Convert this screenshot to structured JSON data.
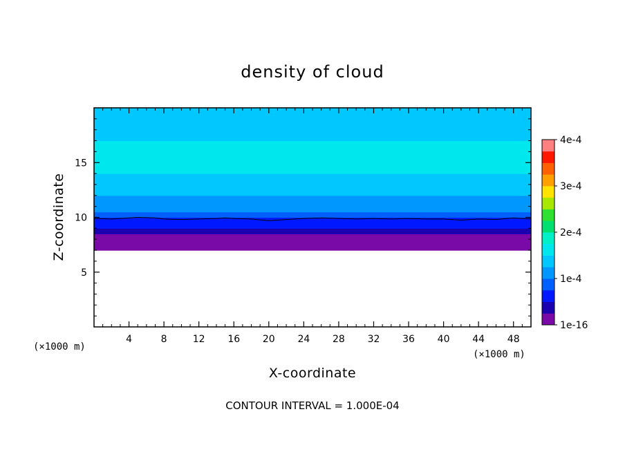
{
  "chart_data": {
    "type": "heatmap",
    "title": "density of cloud",
    "xlabel": "X-coordinate",
    "ylabel": "Z-coordinate",
    "x_unit": "(×1000 m)",
    "y_unit": "(×1000 m)",
    "xlim": [
      0,
      50
    ],
    "ylim": [
      0,
      20
    ],
    "x_ticks": [
      4,
      8,
      12,
      16,
      20,
      24,
      28,
      32,
      36,
      40,
      44,
      48
    ],
    "y_ticks": [
      5,
      10,
      15
    ],
    "colorbar": {
      "min": 0,
      "max": 0.0004,
      "tick_values": [
        0,
        0.0001,
        0.0002,
        0.0003,
        0.0004
      ],
      "tick_labels": [
        "1e-16",
        "1e-4",
        "2e-4",
        "3e-4",
        "4e-4"
      ],
      "colors": [
        "#7a0aa8",
        "#1b00b0",
        "#0018ff",
        "#0060ff",
        "#0098ff",
        "#00c8ff",
        "#00e8ee",
        "#00f0c8",
        "#00e070",
        "#30e030",
        "#a8e800",
        "#ffe400",
        "#ffa000",
        "#ff6000",
        "#ff1800",
        "#ff8080"
      ]
    },
    "z_levels": [
      7.0,
      7.5,
      8.0,
      8.5,
      9.0,
      9.5,
      10.0,
      10.5,
      11.0,
      11.5,
      12.0,
      13.0,
      14.0,
      15.0,
      16.0,
      17.0,
      17.5,
      18.5,
      19.5,
      20.0
    ],
    "density_profile": [
      1e-08,
      8e-06,
      2.2e-05,
      4e-05,
      5.8e-05,
      7.5e-05,
      9e-05,
      0.0001,
      0.000112,
      0.000122,
      0.000132,
      0.000145,
      0.000155,
      0.00016,
      0.000155,
      0.000145,
      0.00014,
      0.000135,
      0.00013,
      0.00013
    ],
    "cloud_base_z": 7.0,
    "contour_line": {
      "level": 0.0001,
      "points": [
        [
          0,
          9.9
        ],
        [
          2,
          9.85
        ],
        [
          4,
          9.95
        ],
        [
          5,
          10.0
        ],
        [
          7,
          9.95
        ],
        [
          8,
          9.85
        ],
        [
          10,
          9.8
        ],
        [
          12,
          9.85
        ],
        [
          14,
          9.9
        ],
        [
          15,
          9.95
        ],
        [
          16,
          9.9
        ],
        [
          18,
          9.85
        ],
        [
          20,
          9.7
        ],
        [
          22,
          9.8
        ],
        [
          24,
          9.9
        ],
        [
          26,
          9.95
        ],
        [
          28,
          9.9
        ],
        [
          30,
          9.85
        ],
        [
          32,
          9.9
        ],
        [
          34,
          9.85
        ],
        [
          36,
          9.9
        ],
        [
          38,
          9.85
        ],
        [
          40,
          9.85
        ],
        [
          42,
          9.75
        ],
        [
          44,
          9.85
        ],
        [
          46,
          9.8
        ],
        [
          48,
          9.95
        ],
        [
          50,
          9.85
        ]
      ]
    },
    "contour_interval": 0.0001
  },
  "text": {
    "title": "density of cloud",
    "xlabel": "X-coordinate",
    "ylabel": "Z-coordinate",
    "x_unit": "(×1000 m)",
    "y_unit": "(×1000 m)",
    "footer": "CONTOUR INTERVAL = 1.000E-04"
  }
}
